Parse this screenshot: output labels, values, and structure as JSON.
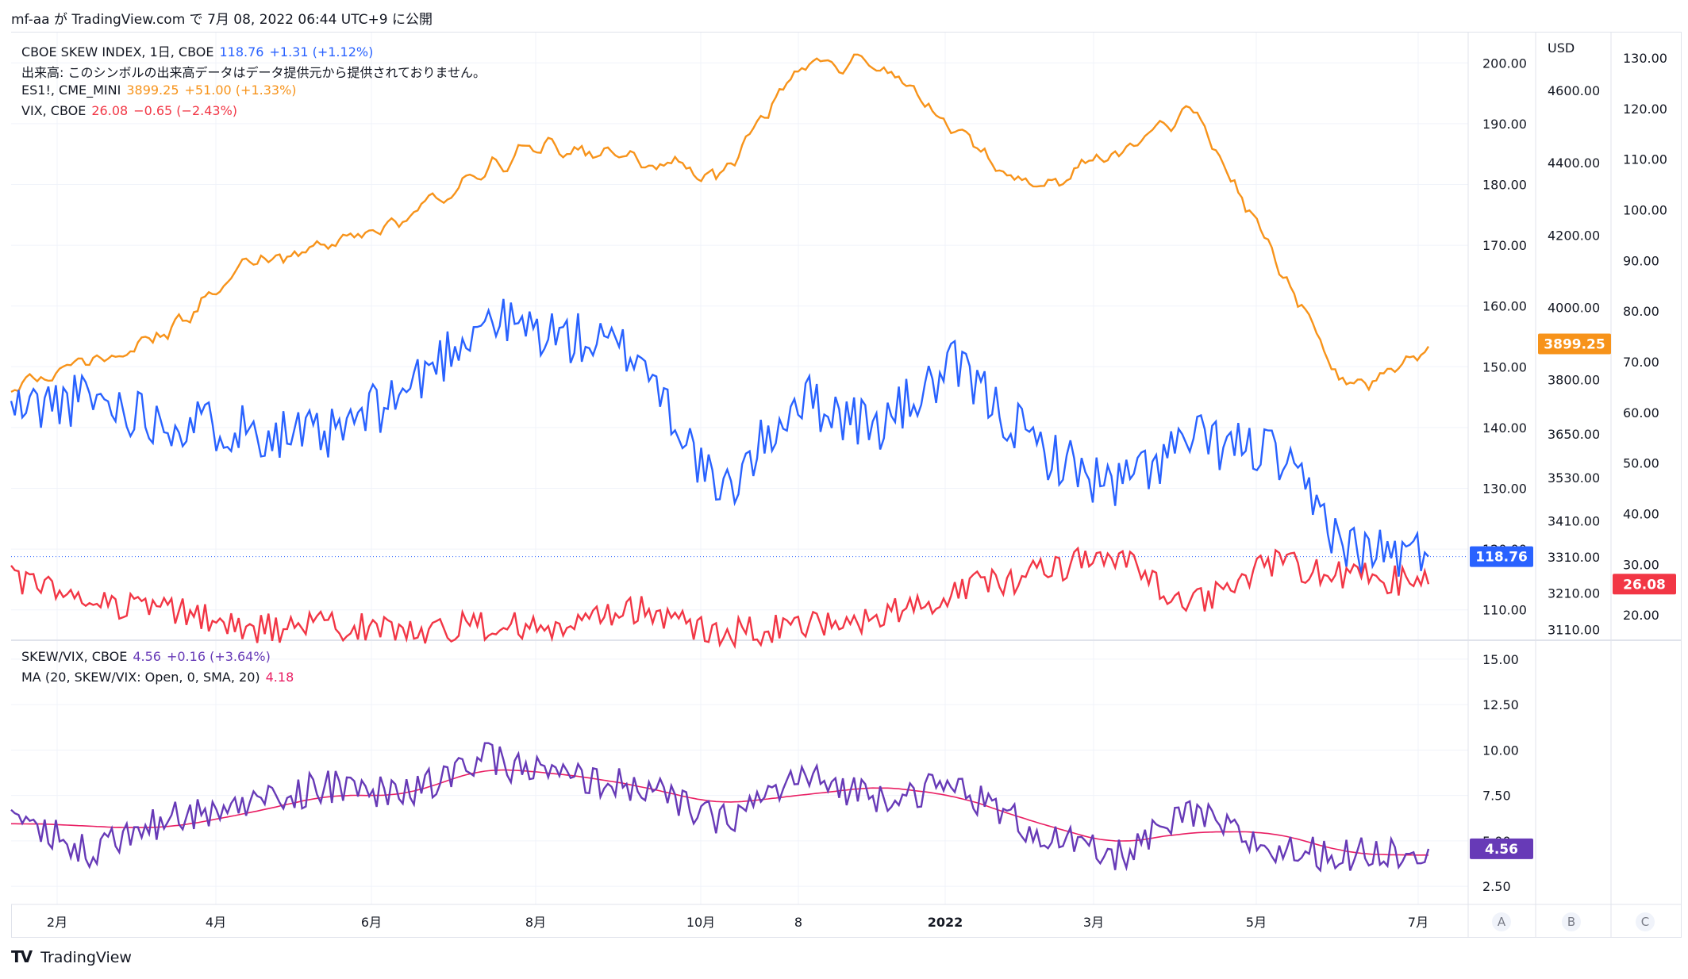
{
  "header": {
    "user": "mf-aa",
    "text": "が TradingView.com で 7月 08, 2022 06:44 UTC+9 に公開"
  },
  "footer": {
    "brand": "TradingView",
    "logo": "tradingview-logo-icon"
  },
  "colors": {
    "skew": "#2962ff",
    "es": "#f7931a",
    "vix": "#f23645",
    "ratio": "#673ab7",
    "ma": "#e91e63",
    "grid": "#f0f3fa"
  },
  "legend_main": [
    {
      "name": "CBOE SKEW INDEX, 1日, CBOE",
      "value": "118.76",
      "change": "+1.31 (+1.12%)",
      "color": "#2962ff"
    },
    {
      "name": "出来高: このシンボルの出来高データはデータ提供元から提供されておりません。",
      "value": "",
      "change": "",
      "color": "#131722"
    },
    {
      "name": "ES1!, CME_MINI",
      "value": "3899.25",
      "change": "+51.00 (+1.33%)",
      "color": "#f7931a"
    },
    {
      "name": "VIX, CBOE",
      "value": "26.08",
      "change": "−0.65 (−2.43%)",
      "color": "#f23645"
    }
  ],
  "legend_sub": [
    {
      "name": "SKEW/VIX, CBOE",
      "value": "4.56",
      "change": "+0.16 (+3.64%)",
      "color": "#673ab7"
    },
    {
      "name": "MA (20, SKEW/VIX: Open, 0, SMA, 20)",
      "value": "4.18",
      "change": "",
      "color": "#e91e63"
    }
  ],
  "axes": {
    "usd_label": "USD",
    "skew_ticks": [
      "200.00",
      "190.00",
      "180.00",
      "170.00",
      "160.00",
      "150.00",
      "140.00",
      "130.00",
      "120.00",
      "110.00"
    ],
    "es_ticks": [
      "4600.00",
      "4400.00",
      "4200.00",
      "4000.00",
      "3800.00",
      "3650.00",
      "3530.00",
      "3410.00",
      "3310.00",
      "3210.00",
      "3110.00"
    ],
    "vix_ticks": [
      "130.00",
      "120.00",
      "110.00",
      "100.00",
      "90.00",
      "80.00",
      "70.00",
      "60.00",
      "50.00",
      "40.00",
      "30.00",
      "20.00"
    ],
    "ratio_ticks": [
      "15.00",
      "12.50",
      "10.00",
      "7.50",
      "5.00",
      "2.50"
    ],
    "time_ticks": [
      "2月",
      "4月",
      "6月",
      "8月",
      "10月",
      "8",
      "2022",
      "3月",
      "5月",
      "7月"
    ],
    "corner_buttons": [
      "A",
      "B",
      "C"
    ]
  },
  "badges": {
    "skew": "118.76",
    "es": "3899.25",
    "vix": "26.08",
    "ratio": "4.56"
  },
  "chart_data": {
    "type": "line",
    "period": "2021-01 to 2022-07 (daily)",
    "series": [
      {
        "name": "CBOE SKEW INDEX",
        "axis": "skew",
        "x": [
          "2021-01",
          "2021-02",
          "2021-03",
          "2021-04",
          "2021-05",
          "2021-06",
          "2021-07",
          "2021-08",
          "2021-09",
          "2021-10",
          "2021-11",
          "2021-12",
          "2022-01",
          "2022-02",
          "2022-03",
          "2022-04",
          "2022-05",
          "2022-06",
          "2022-07"
        ],
        "values": [
          143,
          145,
          141,
          140,
          138,
          146,
          158,
          155,
          152,
          128,
          145,
          140,
          150,
          137,
          130,
          138,
          136,
          120,
          118.76
        ]
      },
      {
        "name": "ES1!",
        "axis": "es",
        "x": [
          "2021-01",
          "2021-02",
          "2021-03",
          "2021-04",
          "2021-05",
          "2021-06",
          "2021-07",
          "2021-08",
          "2021-09",
          "2021-10",
          "2021-11",
          "2021-12",
          "2022-01",
          "2022-02",
          "2022-03",
          "2022-04",
          "2022-05",
          "2022-06",
          "2022-07"
        ],
        "values": [
          3790,
          3850,
          3930,
          4120,
          4180,
          4240,
          4390,
          4450,
          4400,
          4360,
          4680,
          4680,
          4480,
          4330,
          4430,
          4550,
          4150,
          3760,
          3899.25
        ]
      },
      {
        "name": "VIX",
        "axis": "vix",
        "x": [
          "2021-01",
          "2021-02",
          "2021-03",
          "2021-04",
          "2021-05",
          "2021-06",
          "2021-07",
          "2021-08",
          "2021-09",
          "2021-10",
          "2021-11",
          "2021-12",
          "2022-01",
          "2022-02",
          "2022-03",
          "2022-04",
          "2022-05",
          "2022-06",
          "2022-07"
        ],
        "values": [
          27,
          23,
          21,
          17,
          18,
          17,
          18,
          17,
          21,
          16,
          18,
          19,
          25,
          28,
          32,
          22,
          30,
          28,
          26.08
        ]
      },
      {
        "name": "SKEW/VIX",
        "axis": "ratio",
        "x": [
          "2021-01",
          "2021-02",
          "2021-03",
          "2021-04",
          "2021-05",
          "2021-06",
          "2021-07",
          "2021-08",
          "2021-09",
          "2021-10",
          "2021-11",
          "2021-12",
          "2022-01",
          "2022-02",
          "2022-03",
          "2022-04",
          "2022-05",
          "2022-06",
          "2022-07"
        ],
        "values": [
          6.5,
          4.5,
          6.2,
          7.0,
          8.0,
          7.5,
          9.5,
          8.5,
          8.0,
          6.0,
          8.5,
          7.5,
          8.0,
          5.5,
          4.0,
          6.5,
          4.5,
          4.2,
          4.56
        ]
      },
      {
        "name": "MA",
        "axis": "ratio",
        "x": [
          "2021-01",
          "2021-02",
          "2021-03",
          "2021-04",
          "2021-05",
          "2021-06",
          "2021-07",
          "2021-08",
          "2021-09",
          "2021-10",
          "2021-11",
          "2021-12",
          "2022-01",
          "2022-02",
          "2022-03",
          "2022-04",
          "2022-05",
          "2022-06",
          "2022-07"
        ],
        "values": [
          6.0,
          5.8,
          5.7,
          6.5,
          7.5,
          7.5,
          9.0,
          8.7,
          8.0,
          7.0,
          7.5,
          8.0,
          7.5,
          6.0,
          4.8,
          5.5,
          5.5,
          4.3,
          4.18
        ]
      }
    ],
    "ylim_skew": [
      105,
      205
    ],
    "ylim_es": [
      3080,
      4760
    ],
    "ylim_vix": [
      15,
      135
    ],
    "ylim_ratio": [
      1.5,
      16
    ],
    "grid": true,
    "legend": "top-left"
  }
}
